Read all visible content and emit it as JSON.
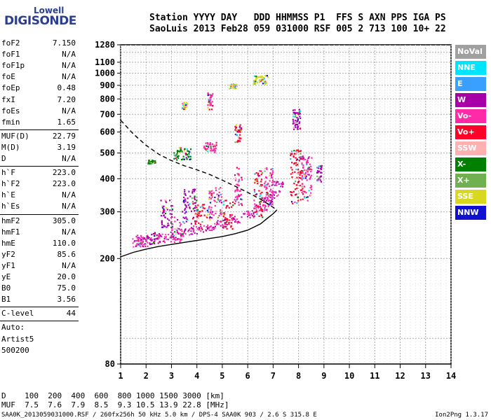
{
  "logo": {
    "line1": "Lowell",
    "line2": "DIGISONDE"
  },
  "header": {
    "line1": "Station YYYY DAY   DDD HHMMSS P1  FFS S AXN PPS IGA PS",
    "line2": "SaoLuis 2013 Feb28 059 031000 RSF 005 2 713 100 10+ 22"
  },
  "params": {
    "group1": [
      {
        "label": "foF2",
        "value": "7.150"
      },
      {
        "label": "foF1",
        "value": "N/A"
      },
      {
        "label": "foF1p",
        "value": "N/A"
      },
      {
        "label": "foE",
        "value": "N/A"
      },
      {
        "label": "foEp",
        "value": "0.48"
      },
      {
        "label": "fxI",
        "value": "7.20"
      },
      {
        "label": "foEs",
        "value": "N/A"
      },
      {
        "label": "fmin",
        "value": "1.65"
      }
    ],
    "group2": [
      {
        "label": "MUF(D)",
        "value": "22.79"
      },
      {
        "label": "M(D)",
        "value": "3.19"
      },
      {
        "label": "D",
        "value": "N/A"
      }
    ],
    "group3": [
      {
        "label": "h`F",
        "value": "223.0"
      },
      {
        "label": "h`F2",
        "value": "223.0"
      },
      {
        "label": "h`E",
        "value": "N/A"
      },
      {
        "label": "h`Es",
        "value": "N/A"
      }
    ],
    "group4": [
      {
        "label": "hmF2",
        "value": "305.0"
      },
      {
        "label": "hmF1",
        "value": "N/A"
      },
      {
        "label": "hmE",
        "value": "110.0"
      },
      {
        "label": "yF2",
        "value": "85.6"
      },
      {
        "label": "yF1",
        "value": "N/A"
      },
      {
        "label": "yE",
        "value": "20.0"
      },
      {
        "label": "B0",
        "value": "75.0"
      },
      {
        "label": "B1",
        "value": "3.56"
      }
    ],
    "clevel": {
      "label": "C-level",
      "value": "44"
    },
    "auto": [
      "Auto:",
      "Artist5",
      "500200"
    ]
  },
  "legend": [
    {
      "label": "NoVal",
      "color": "#a0a0a0"
    },
    {
      "label": "NNE",
      "color": "#00e5ff"
    },
    {
      "label": "E",
      "color": "#3aa0ff"
    },
    {
      "label": "W",
      "color": "#a800a8"
    },
    {
      "label": "Vo-",
      "color": "#ff2aa8"
    },
    {
      "label": "Vo+",
      "color": "#ff0028"
    },
    {
      "label": "SSW",
      "color": "#ffb0b0"
    },
    {
      "label": "X-",
      "color": "#008000"
    },
    {
      "label": "X+",
      "color": "#70b050"
    },
    {
      "label": "SSE",
      "color": "#d8d820"
    },
    {
      "label": "NNW",
      "color": "#1010d0"
    }
  ],
  "dtable": {
    "line1": "D    100  200  400  600  800 1000 1500 3000 [km]",
    "line2": "MUF  7.5  7.6  7.9  8.5  9.3 10.5 13.9 22.8 [MHz]"
  },
  "footer": {
    "left": "SAA0K_2013059031000.RSF / 260fx256h 50 kHz 5.0 km / DPS-4 SAA0K 903 / 2.6 S 315.8 E",
    "right": "Ion2Png 1.3.17"
  },
  "chart_data": {
    "type": "scatter",
    "title": "",
    "xlabel": "",
    "ylabel": "",
    "x_ticks": [
      "1",
      "2",
      "3",
      "4",
      "5",
      "6",
      "7",
      "8",
      "9",
      "10",
      "11",
      "12",
      "13",
      "14"
    ],
    "y_ticks": [
      "80",
      "200",
      "300",
      "400",
      "500",
      "600",
      "700",
      "800",
      "900",
      "1000",
      "1100",
      "1280"
    ],
    "xlim": [
      1,
      14
    ],
    "ylim": [
      80,
      1280
    ],
    "y_scale": "log",
    "grid": true,
    "curves": {
      "profile_solid": {
        "x": [
          1.0,
          1.5,
          2.0,
          2.5,
          3.0,
          3.5,
          4.0,
          4.5,
          5.0,
          5.5,
          6.0,
          6.5,
          6.8,
          7.0,
          7.15
        ],
        "y": [
          203,
          211,
          217,
          222,
          226,
          230,
          234,
          238,
          242,
          248,
          256,
          270,
          285,
          295,
          305
        ]
      },
      "profile_dashed": {
        "x": [
          1.0,
          1.5,
          2.0,
          2.5,
          3.0,
          3.5,
          4.0,
          4.5,
          5.0,
          5.5,
          6.0,
          6.5,
          7.0,
          7.15
        ],
        "y": [
          665,
          590,
          535,
          495,
          468,
          448,
          432,
          415,
          395,
          375,
          355,
          335,
          312,
          305
        ]
      },
      "trace_o": {
        "x": [
          1.7,
          2.0,
          2.5,
          3.0,
          3.5,
          4.0,
          4.5,
          5.0,
          5.5,
          6.0,
          6.5,
          6.8,
          7.0,
          7.15
        ],
        "y": [
          228,
          232,
          237,
          242,
          248,
          254,
          260,
          268,
          278,
          292,
          310,
          330,
          350,
          380
        ]
      }
    },
    "echo_clusters": [
      {
        "x": 1.8,
        "y": 235,
        "w": 0.5,
        "h": 14,
        "color": "#ff2aa8"
      },
      {
        "x": 2.3,
        "y": 240,
        "w": 0.4,
        "h": 15,
        "color": "#a800a8"
      },
      {
        "x": 2.8,
        "y": 300,
        "w": 0.5,
        "h": 45,
        "color": "#a800a8"
      },
      {
        "x": 3.2,
        "y": 260,
        "w": 0.5,
        "h": 35,
        "color": "#ff2aa8"
      },
      {
        "x": 3.7,
        "y": 320,
        "w": 0.6,
        "h": 60,
        "color": "#a800a8"
      },
      {
        "x": 4.2,
        "y": 290,
        "w": 0.6,
        "h": 40,
        "color": "#ff0028"
      },
      {
        "x": 4.7,
        "y": 330,
        "w": 0.5,
        "h": 55,
        "color": "#ff2aa8"
      },
      {
        "x": 5.2,
        "y": 300,
        "w": 0.4,
        "h": 50,
        "color": "#ff0028"
      },
      {
        "x": 5.6,
        "y": 380,
        "w": 0.3,
        "h": 80,
        "color": "#ff2aa8"
      },
      {
        "x": 6.4,
        "y": 360,
        "w": 0.35,
        "h": 90,
        "color": "#ff0028"
      },
      {
        "x": 6.8,
        "y": 380,
        "w": 0.35,
        "h": 80,
        "color": "#ff2aa8"
      },
      {
        "x": 7.9,
        "y": 420,
        "w": 0.5,
        "h": 120,
        "color": "#ff0028"
      },
      {
        "x": 8.3,
        "y": 410,
        "w": 0.4,
        "h": 100,
        "color": "#ff2aa8"
      },
      {
        "x": 8.8,
        "y": 420,
        "w": 0.2,
        "h": 40,
        "color": "#a800a8"
      },
      {
        "x": 3.4,
        "y": 500,
        "w": 0.7,
        "h": 35,
        "color": "#008000"
      },
      {
        "x": 4.5,
        "y": 530,
        "w": 0.5,
        "h": 30,
        "color": "#ff2aa8"
      },
      {
        "x": 2.2,
        "y": 465,
        "w": 0.3,
        "h": 10,
        "color": "#008000"
      },
      {
        "x": 5.6,
        "y": 600,
        "w": 0.25,
        "h": 60,
        "color": "#ff0028"
      },
      {
        "x": 6.5,
        "y": 950,
        "w": 0.6,
        "h": 45,
        "color": "#d8d820"
      },
      {
        "x": 5.4,
        "y": 900,
        "w": 0.3,
        "h": 25,
        "color": "#d8d820"
      },
      {
        "x": 7.9,
        "y": 680,
        "w": 0.3,
        "h": 80,
        "color": "#a800a8"
      },
      {
        "x": 4.5,
        "y": 790,
        "w": 0.2,
        "h": 70,
        "color": "#ff2aa8"
      },
      {
        "x": 3.5,
        "y": 760,
        "w": 0.2,
        "h": 30,
        "color": "#d8d820"
      }
    ]
  }
}
